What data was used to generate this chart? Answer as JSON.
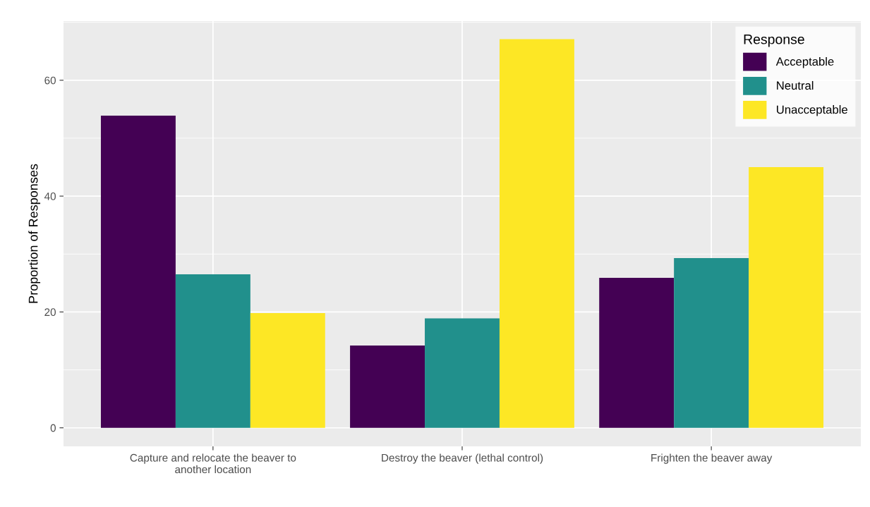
{
  "chart_data": {
    "type": "bar",
    "ylabel": "Proportion of Responses",
    "legend_title": "Response",
    "categories": [
      "Capture and relocate the beaver to\nanother location",
      "Destroy the beaver (lethal control)",
      "Frighten the beaver away"
    ],
    "series": [
      {
        "name": "Acceptable",
        "color": "#440154",
        "values": [
          53.9,
          14.2,
          25.9
        ]
      },
      {
        "name": "Neutral",
        "color": "#21908c",
        "values": [
          26.5,
          18.9,
          29.3
        ]
      },
      {
        "name": "Unacceptable",
        "color": "#fde725",
        "values": [
          19.8,
          67.1,
          45.0
        ]
      }
    ],
    "ylim": [
      -3.2,
      70.2
    ],
    "yticks": [
      0,
      20,
      40,
      60
    ],
    "grid": true,
    "legend": "top right"
  }
}
